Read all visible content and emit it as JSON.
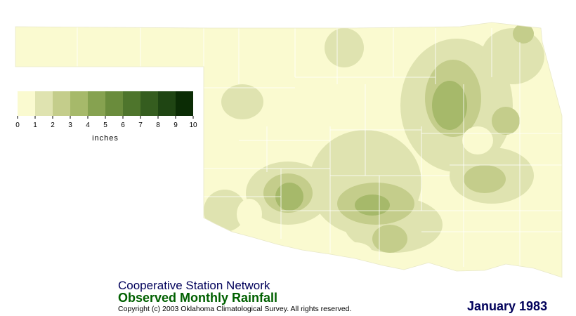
{
  "legend": {
    "ticks": [
      0,
      1,
      2,
      3,
      4,
      5,
      6,
      7,
      8,
      9,
      10
    ],
    "unit": "inches",
    "colors": [
      "#fafad0",
      "#dfe3b0",
      "#c4cd8b",
      "#a6b96a",
      "#86a250",
      "#6a8c3c",
      "#4e752c",
      "#355d1f",
      "#1f4513",
      "#0b2c05"
    ]
  },
  "title": {
    "network": "Cooperative Station Network",
    "product": "Observed Monthly Rainfall",
    "copyright": "Copyright (c) 2003 Oklahoma Climatological Survey. All rights reserved."
  },
  "date": "January 1983"
}
